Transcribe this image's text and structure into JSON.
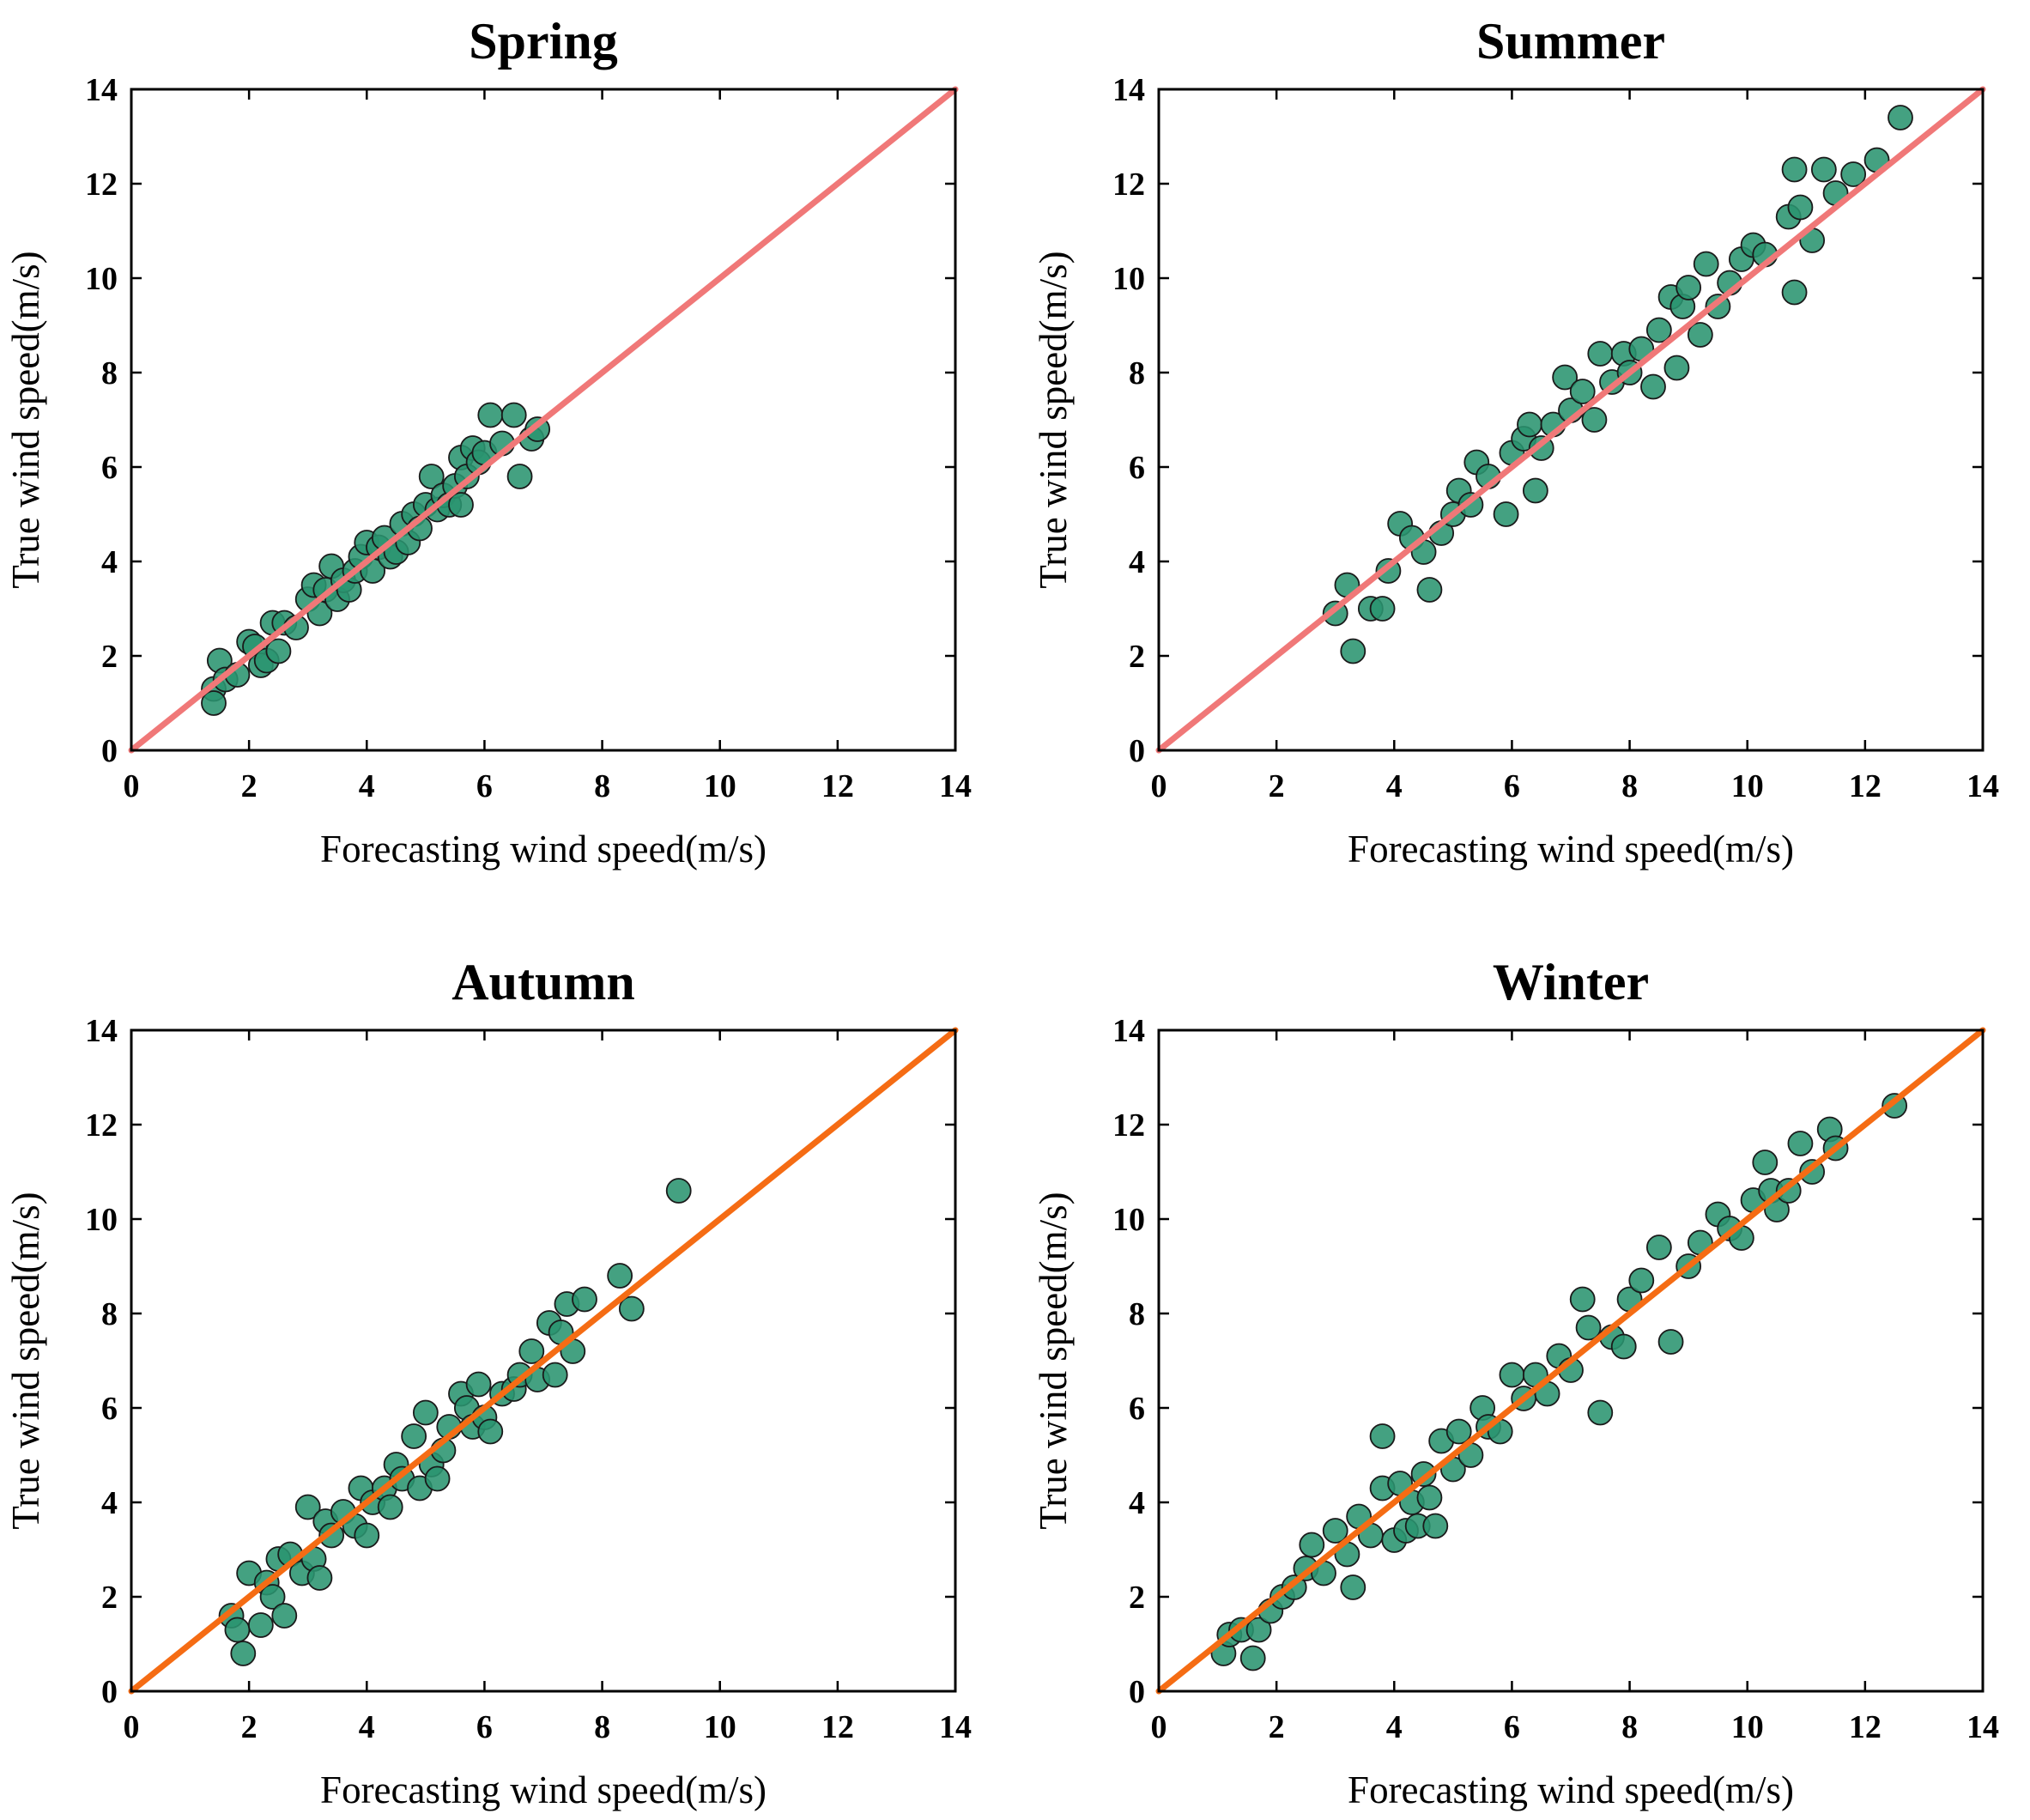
{
  "chart_data": [
    {
      "type": "scatter",
      "title": "Spring",
      "xlabel": "Forecasting wind speed(m/s)",
      "ylabel": "True wind speed(m/s)",
      "xlim": [
        0,
        14
      ],
      "ylim": [
        0,
        14
      ],
      "xticks": [
        "0",
        "2",
        "4",
        "6",
        "8",
        "10",
        "12",
        "14"
      ],
      "yticks": [
        "0",
        "2",
        "4",
        "6",
        "8",
        "10",
        "12",
        "14"
      ],
      "reference_line": {
        "label": "y = x",
        "from": [
          0,
          0
        ],
        "to": [
          14,
          14
        ],
        "color": "#f07878"
      },
      "marker_color": "#2a9470",
      "points": [
        [
          1.4,
          1.3
        ],
        [
          1.4,
          1.0
        ],
        [
          1.5,
          1.9
        ],
        [
          1.6,
          1.5
        ],
        [
          1.8,
          1.6
        ],
        [
          2.0,
          2.3
        ],
        [
          2.1,
          2.2
        ],
        [
          2.2,
          1.8
        ],
        [
          2.3,
          1.9
        ],
        [
          2.4,
          2.7
        ],
        [
          2.5,
          2.1
        ],
        [
          2.6,
          2.7
        ],
        [
          2.8,
          2.6
        ],
        [
          3.0,
          3.2
        ],
        [
          3.1,
          3.5
        ],
        [
          3.2,
          2.9
        ],
        [
          3.3,
          3.4
        ],
        [
          3.4,
          3.9
        ],
        [
          3.5,
          3.2
        ],
        [
          3.6,
          3.6
        ],
        [
          3.7,
          3.4
        ],
        [
          3.8,
          3.8
        ],
        [
          3.9,
          4.1
        ],
        [
          4.0,
          4.4
        ],
        [
          4.1,
          3.8
        ],
        [
          4.2,
          4.3
        ],
        [
          4.3,
          4.5
        ],
        [
          4.4,
          4.1
        ],
        [
          4.5,
          4.2
        ],
        [
          4.6,
          4.8
        ],
        [
          4.7,
          4.4
        ],
        [
          4.8,
          5.0
        ],
        [
          4.9,
          4.7
        ],
        [
          5.0,
          5.2
        ],
        [
          5.1,
          5.8
        ],
        [
          5.2,
          5.1
        ],
        [
          5.3,
          5.4
        ],
        [
          5.4,
          5.2
        ],
        [
          5.5,
          5.6
        ],
        [
          5.6,
          5.2
        ],
        [
          5.6,
          6.2
        ],
        [
          5.7,
          5.8
        ],
        [
          5.8,
          6.4
        ],
        [
          5.9,
          6.1
        ],
        [
          6.0,
          6.3
        ],
        [
          6.1,
          7.1
        ],
        [
          6.3,
          6.5
        ],
        [
          6.5,
          7.1
        ],
        [
          6.6,
          5.8
        ],
        [
          6.8,
          6.6
        ],
        [
          6.9,
          6.8
        ]
      ]
    },
    {
      "type": "scatter",
      "title": "Summer",
      "xlabel": "Forecasting wind speed(m/s)",
      "ylabel": "True wind speed(m/s)",
      "xlim": [
        0,
        14
      ],
      "ylim": [
        0,
        14
      ],
      "xticks": [
        "0",
        "2",
        "4",
        "6",
        "8",
        "10",
        "12",
        "14"
      ],
      "yticks": [
        "0",
        "2",
        "4",
        "6",
        "8",
        "10",
        "12",
        "14"
      ],
      "reference_line": {
        "label": "y = x",
        "from": [
          0,
          0
        ],
        "to": [
          14,
          14
        ],
        "color": "#f07878"
      },
      "marker_color": "#2a9470",
      "points": [
        [
          3.0,
          2.9
        ],
        [
          3.2,
          3.5
        ],
        [
          3.3,
          2.1
        ],
        [
          3.6,
          3.0
        ],
        [
          3.8,
          3.0
        ],
        [
          3.9,
          3.8
        ],
        [
          4.1,
          4.8
        ],
        [
          4.3,
          4.5
        ],
        [
          4.5,
          4.2
        ],
        [
          4.6,
          3.4
        ],
        [
          4.8,
          4.6
        ],
        [
          5.0,
          5.0
        ],
        [
          5.1,
          5.5
        ],
        [
          5.3,
          5.2
        ],
        [
          5.4,
          6.1
        ],
        [
          5.6,
          5.8
        ],
        [
          5.9,
          5.0
        ],
        [
          6.0,
          6.3
        ],
        [
          6.2,
          6.6
        ],
        [
          6.3,
          6.9
        ],
        [
          6.4,
          5.5
        ],
        [
          6.5,
          6.4
        ],
        [
          6.7,
          6.9
        ],
        [
          6.9,
          7.9
        ],
        [
          7.0,
          7.2
        ],
        [
          7.2,
          7.6
        ],
        [
          7.4,
          7.0
        ],
        [
          7.5,
          8.4
        ],
        [
          7.7,
          7.8
        ],
        [
          7.9,
          8.4
        ],
        [
          8.0,
          8.0
        ],
        [
          8.2,
          8.5
        ],
        [
          8.4,
          7.7
        ],
        [
          8.5,
          8.9
        ],
        [
          8.7,
          9.6
        ],
        [
          8.8,
          8.1
        ],
        [
          8.9,
          9.4
        ],
        [
          9.0,
          9.8
        ],
        [
          9.2,
          8.8
        ],
        [
          9.3,
          10.3
        ],
        [
          9.5,
          9.4
        ],
        [
          9.7,
          9.9
        ],
        [
          9.9,
          10.4
        ],
        [
          10.1,
          10.7
        ],
        [
          10.3,
          10.5
        ],
        [
          10.7,
          11.3
        ],
        [
          10.8,
          9.7
        ],
        [
          10.8,
          12.3
        ],
        [
          10.9,
          11.5
        ],
        [
          11.1,
          10.8
        ],
        [
          11.3,
          12.3
        ],
        [
          11.5,
          11.8
        ],
        [
          11.8,
          12.2
        ],
        [
          12.2,
          12.5
        ],
        [
          12.6,
          13.4
        ]
      ]
    },
    {
      "type": "scatter",
      "title": "Autumn",
      "xlabel": "Forecasting wind speed(m/s)",
      "ylabel": "True wind speed(m/s)",
      "xlim": [
        0,
        14
      ],
      "ylim": [
        0,
        14
      ],
      "xticks": [
        "0",
        "2",
        "4",
        "6",
        "8",
        "10",
        "12",
        "14"
      ],
      "yticks": [
        "0",
        "2",
        "4",
        "6",
        "8",
        "10",
        "12",
        "14"
      ],
      "reference_line": {
        "label": "y = x",
        "from": [
          0,
          0
        ],
        "to": [
          14,
          14
        ],
        "color": "#f56c14"
      },
      "marker_color": "#2a9470",
      "points": [
        [
          1.7,
          1.6
        ],
        [
          1.8,
          1.3
        ],
        [
          1.9,
          0.8
        ],
        [
          2.0,
          2.5
        ],
        [
          2.2,
          1.4
        ],
        [
          2.3,
          2.3
        ],
        [
          2.4,
          2.0
        ],
        [
          2.5,
          2.8
        ],
        [
          2.6,
          1.6
        ],
        [
          2.7,
          2.9
        ],
        [
          2.9,
          2.5
        ],
        [
          3.0,
          3.9
        ],
        [
          3.1,
          2.8
        ],
        [
          3.2,
          2.4
        ],
        [
          3.3,
          3.6
        ],
        [
          3.4,
          3.3
        ],
        [
          3.6,
          3.8
        ],
        [
          3.8,
          3.5
        ],
        [
          3.9,
          4.3
        ],
        [
          4.0,
          3.3
        ],
        [
          4.1,
          4.0
        ],
        [
          4.3,
          4.3
        ],
        [
          4.4,
          3.9
        ],
        [
          4.5,
          4.8
        ],
        [
          4.6,
          4.5
        ],
        [
          4.8,
          5.4
        ],
        [
          4.9,
          4.3
        ],
        [
          5.0,
          5.9
        ],
        [
          5.1,
          4.8
        ],
        [
          5.2,
          4.5
        ],
        [
          5.3,
          5.1
        ],
        [
          5.4,
          5.6
        ],
        [
          5.6,
          6.3
        ],
        [
          5.7,
          6.0
        ],
        [
          5.8,
          5.6
        ],
        [
          5.9,
          6.5
        ],
        [
          6.0,
          5.8
        ],
        [
          6.1,
          5.5
        ],
        [
          6.3,
          6.3
        ],
        [
          6.5,
          6.4
        ],
        [
          6.6,
          6.7
        ],
        [
          6.8,
          7.2
        ],
        [
          6.9,
          6.6
        ],
        [
          7.1,
          7.8
        ],
        [
          7.2,
          6.7
        ],
        [
          7.3,
          7.6
        ],
        [
          7.4,
          8.2
        ],
        [
          7.5,
          7.2
        ],
        [
          7.7,
          8.3
        ],
        [
          8.3,
          8.8
        ],
        [
          8.5,
          8.1
        ],
        [
          9.3,
          10.6
        ]
      ]
    },
    {
      "type": "scatter",
      "title": "Winter",
      "xlabel": "Forecasting wind speed(m/s)",
      "ylabel": "True wind speed(m/s)",
      "xlim": [
        0,
        14
      ],
      "ylim": [
        0,
        14
      ],
      "xticks": [
        "0",
        "2",
        "4",
        "6",
        "8",
        "10",
        "12",
        "14"
      ],
      "yticks": [
        "0",
        "2",
        "4",
        "6",
        "8",
        "10",
        "12",
        "14"
      ],
      "reference_line": {
        "label": "y = x",
        "from": [
          0,
          0
        ],
        "to": [
          14,
          14
        ],
        "color": "#f56c14"
      },
      "marker_color": "#2a9470",
      "points": [
        [
          1.1,
          0.8
        ],
        [
          1.2,
          1.2
        ],
        [
          1.4,
          1.3
        ],
        [
          1.6,
          0.7
        ],
        [
          1.7,
          1.3
        ],
        [
          1.9,
          1.7
        ],
        [
          2.1,
          2.0
        ],
        [
          2.3,
          2.2
        ],
        [
          2.5,
          2.6
        ],
        [
          2.6,
          3.1
        ],
        [
          2.8,
          2.5
        ],
        [
          3.0,
          3.4
        ],
        [
          3.2,
          2.9
        ],
        [
          3.3,
          2.2
        ],
        [
          3.4,
          3.7
        ],
        [
          3.6,
          3.3
        ],
        [
          3.8,
          4.3
        ],
        [
          3.8,
          5.4
        ],
        [
          4.0,
          3.2
        ],
        [
          4.1,
          4.4
        ],
        [
          4.2,
          3.4
        ],
        [
          4.3,
          4.0
        ],
        [
          4.4,
          3.5
        ],
        [
          4.5,
          4.6
        ],
        [
          4.6,
          4.1
        ],
        [
          4.7,
          3.5
        ],
        [
          4.8,
          5.3
        ],
        [
          5.0,
          4.7
        ],
        [
          5.1,
          5.5
        ],
        [
          5.3,
          5.0
        ],
        [
          5.5,
          6.0
        ],
        [
          5.6,
          5.6
        ],
        [
          5.8,
          5.5
        ],
        [
          6.0,
          6.7
        ],
        [
          6.2,
          6.2
        ],
        [
          6.4,
          6.7
        ],
        [
          6.6,
          6.3
        ],
        [
          6.8,
          7.1
        ],
        [
          7.0,
          6.8
        ],
        [
          7.2,
          8.3
        ],
        [
          7.3,
          7.7
        ],
        [
          7.5,
          5.9
        ],
        [
          7.7,
          7.5
        ],
        [
          7.9,
          7.3
        ],
        [
          8.0,
          8.3
        ],
        [
          8.2,
          8.7
        ],
        [
          8.5,
          9.4
        ],
        [
          8.7,
          7.4
        ],
        [
          9.0,
          9.0
        ],
        [
          9.2,
          9.5
        ],
        [
          9.5,
          10.1
        ],
        [
          9.7,
          9.8
        ],
        [
          9.9,
          9.6
        ],
        [
          10.1,
          10.4
        ],
        [
          10.3,
          11.2
        ],
        [
          10.4,
          10.6
        ],
        [
          10.5,
          10.2
        ],
        [
          10.7,
          10.6
        ],
        [
          10.9,
          11.6
        ],
        [
          11.1,
          11.0
        ],
        [
          11.4,
          11.9
        ],
        [
          11.5,
          11.5
        ],
        [
          12.5,
          12.4
        ]
      ]
    }
  ]
}
